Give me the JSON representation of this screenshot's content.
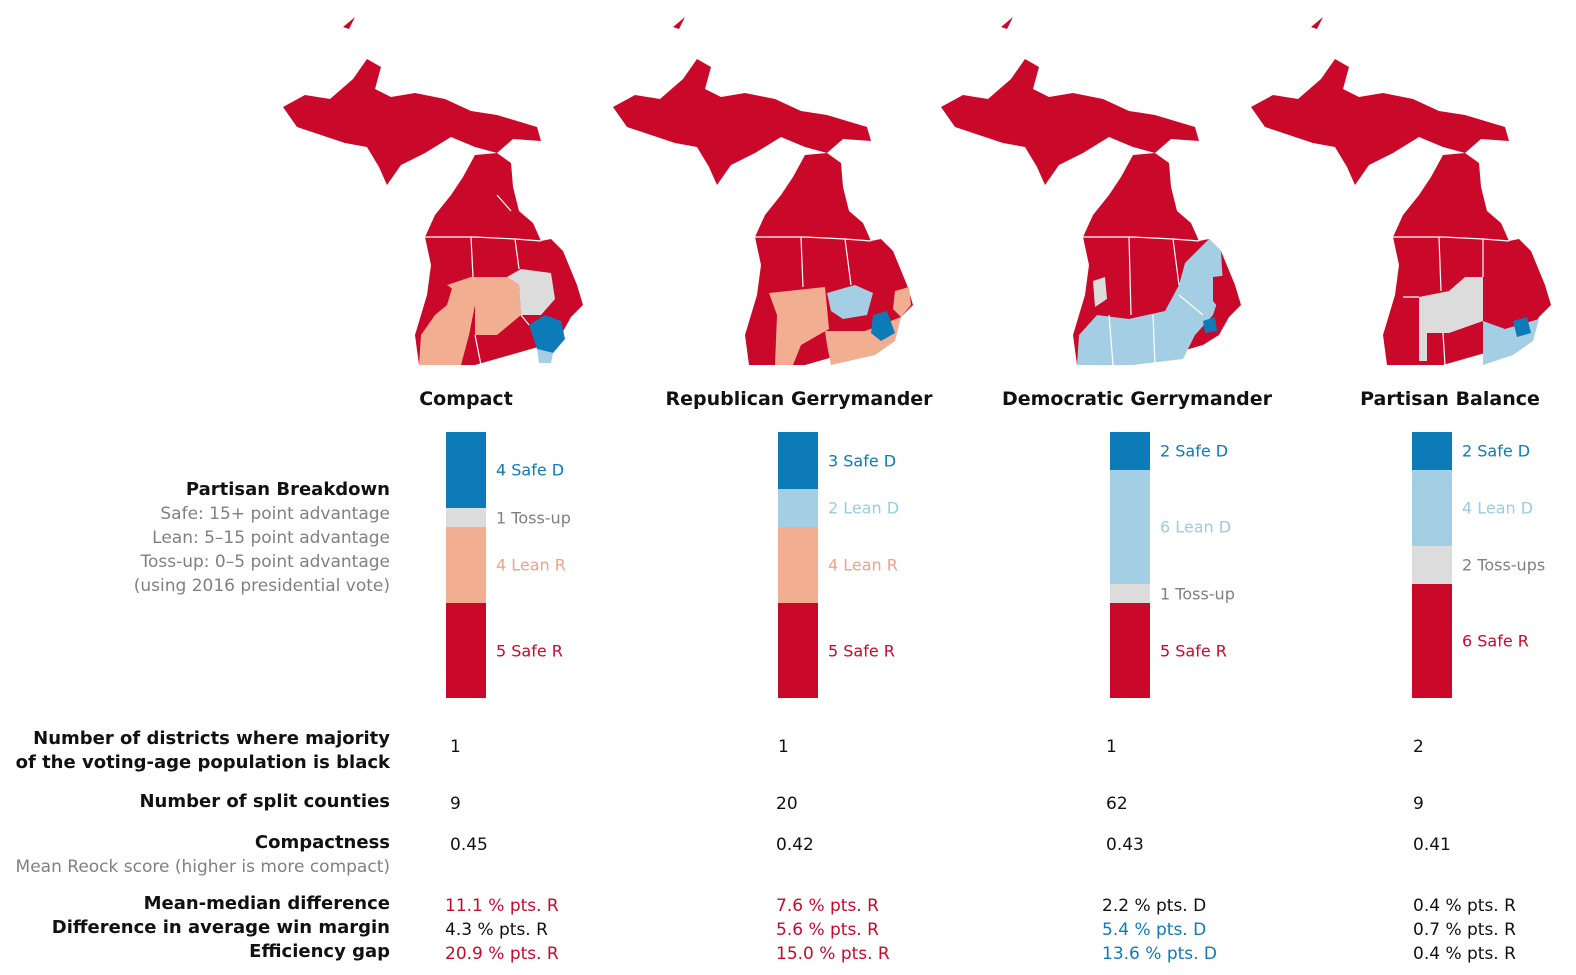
{
  "colors": {
    "safe_d": "#0c7bb8",
    "lean_d": "#a3cee3",
    "toss_up": "#dcdcdc",
    "lean_r": "#f2ae91",
    "safe_r": "#c9082a",
    "label_safe_d": "#0c7bb8",
    "label_lean_d": "#9ccbe3",
    "label_toss_up": "#808080",
    "label_lean_r": "#eea488",
    "label_safe_r": "#c9082a"
  },
  "labels": {
    "partisan_title": "Partisan Breakdown",
    "partisan_safe": "Safe: 15+ point advantage",
    "partisan_lean": "Lean: 5–15 point advantage",
    "partisan_toss": "Toss-up: 0–5 point advantage",
    "partisan_note": "(using 2016 presidential vote)",
    "black_majority_1": "Number of districts where majority",
    "black_majority_2": "of the voting-age population is black",
    "split_counties": "Number of split counties",
    "compactness": "Compactness",
    "compactness_sub": "Mean Reock score (higher is more compact)",
    "mean_median": "Mean-median difference",
    "win_margin": "Difference in average win margin",
    "efficiency_gap": "Efficiency gap"
  },
  "chart_data": {
    "type": "bar",
    "stacked": true,
    "categories": [
      "Compact",
      "Republican Gerrymander",
      "Democratic Gerrymander",
      "Partisan Balance"
    ],
    "series": [
      {
        "name": "Safe D",
        "values": [
          4,
          3,
          2,
          2
        ]
      },
      {
        "name": "Lean D",
        "values": [
          0,
          2,
          6,
          4
        ]
      },
      {
        "name": "Toss-up",
        "values": [
          1,
          0,
          1,
          2
        ]
      },
      {
        "name": "Lean R",
        "values": [
          4,
          4,
          0,
          0
        ]
      },
      {
        "name": "Safe R",
        "values": [
          5,
          5,
          5,
          6
        ]
      }
    ],
    "segment_labels": [
      [
        {
          "kind": "safe_d",
          "text": "4 Safe D"
        },
        {
          "kind": "toss_up",
          "text": "1 Toss-up"
        },
        {
          "kind": "lean_r",
          "text": "4 Lean R"
        },
        {
          "kind": "safe_r",
          "text": "5 Safe R"
        }
      ],
      [
        {
          "kind": "safe_d",
          "text": "3 Safe D"
        },
        {
          "kind": "lean_d",
          "text": "2 Lean D"
        },
        {
          "kind": "lean_r",
          "text": "4 Lean R"
        },
        {
          "kind": "safe_r",
          "text": "5 Safe R"
        }
      ],
      [
        {
          "kind": "safe_d",
          "text": "2 Safe D"
        },
        {
          "kind": "lean_d",
          "text": "6 Lean D"
        },
        {
          "kind": "toss_up",
          "text": "1 Toss-up"
        },
        {
          "kind": "safe_r",
          "text": "5 Safe R"
        }
      ],
      [
        {
          "kind": "safe_d",
          "text": "2 Safe D"
        },
        {
          "kind": "lean_d",
          "text": "4 Lean D"
        },
        {
          "kind": "toss_up",
          "text": "2 Toss-ups"
        },
        {
          "kind": "safe_r",
          "text": "6 Safe R"
        }
      ]
    ],
    "total_districts": 14
  },
  "plans": [
    {
      "name": "Compact",
      "black_majority": "1",
      "split_counties": "9",
      "compactness": "0.45",
      "mean_median": {
        "text": "11.1 % pts. R",
        "party": "R"
      },
      "win_margin": {
        "text": "4.3 % pts. R",
        "party": "N"
      },
      "efficiency_gap": {
        "text": "20.9 % pts. R",
        "party": "R"
      }
    },
    {
      "name": "Republican Gerrymander",
      "black_majority": "1",
      "split_counties": "20",
      "compactness": "0.42",
      "mean_median": {
        "text": "7.6 % pts. R",
        "party": "R"
      },
      "win_margin": {
        "text": "5.6 % pts. R",
        "party": "R"
      },
      "efficiency_gap": {
        "text": "15.0 % pts. R",
        "party": "R"
      }
    },
    {
      "name": "Democratic Gerrymander",
      "black_majority": "1",
      "split_counties": "62",
      "compactness": "0.43",
      "mean_median": {
        "text": "2.2 % pts. D",
        "party": "N"
      },
      "win_margin": {
        "text": "5.4 % pts. D",
        "party": "D"
      },
      "efficiency_gap": {
        "text": "13.6 % pts. D",
        "party": "D"
      }
    },
    {
      "name": "Partisan Balance",
      "black_majority": "2",
      "split_counties": "9",
      "compactness": "0.41",
      "mean_median": {
        "text": "0.4 % pts. R",
        "party": "N"
      },
      "win_margin": {
        "text": "0.7 % pts. R",
        "party": "N"
      },
      "efficiency_gap": {
        "text": "0.4 % pts. R",
        "party": "N"
      }
    }
  ]
}
